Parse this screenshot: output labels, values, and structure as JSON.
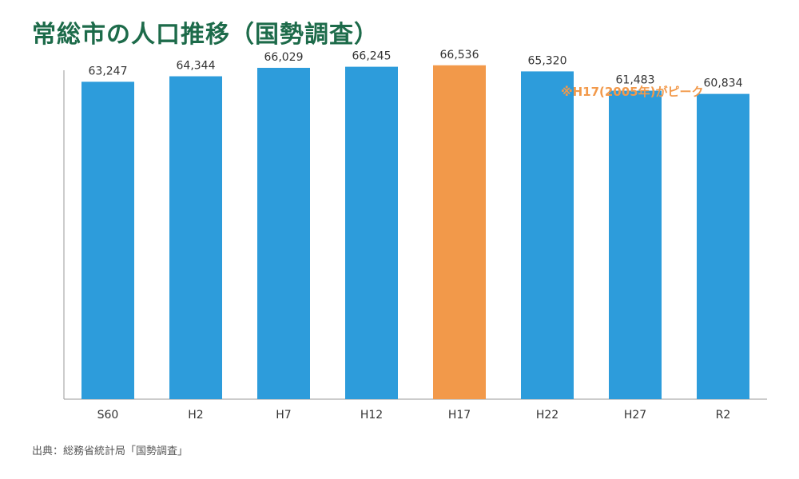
{
  "title": "常総市の人口推移（国勢調査）",
  "source": "出典：総務省統計局「国勢調査」",
  "annotation": "※H17(2005年)がピーク",
  "colors": {
    "title": "#1d6b4a",
    "bar": "#2d9cdb",
    "highlight": "#f2994a",
    "label": "#333333",
    "axis": "#999999"
  },
  "chart_data": {
    "type": "bar",
    "categories": [
      "S60",
      "H2",
      "H7",
      "H12",
      "H17",
      "H22",
      "H27",
      "R2"
    ],
    "values": [
      63247,
      64344,
      66029,
      66245,
      66536,
      65320,
      61483,
      60834
    ],
    "value_labels": [
      "63,247",
      "64,344",
      "66,029",
      "66,245",
      "66,536",
      "65,320",
      "61,483",
      "60,834"
    ],
    "highlight_category": "H17",
    "ylim": [
      0,
      70000
    ],
    "grid": false,
    "legend": "none"
  }
}
